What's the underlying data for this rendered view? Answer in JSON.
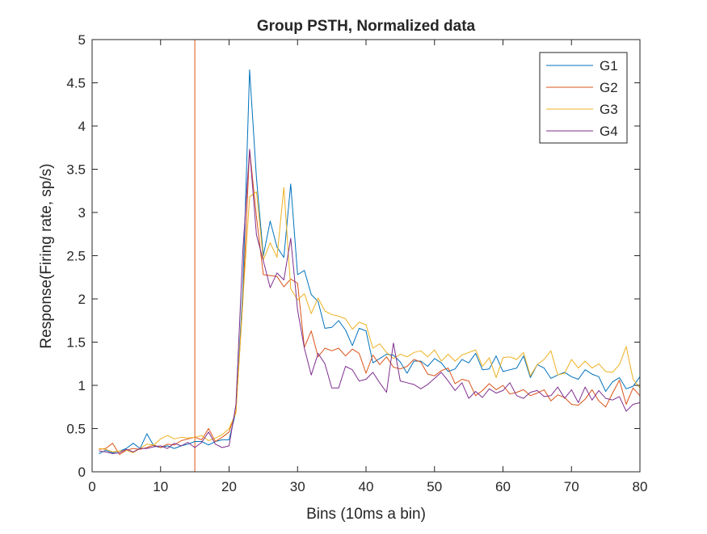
{
  "chart_data": {
    "type": "line",
    "title": "Group PSTH, Normalized data",
    "xlabel": "Bins (10ms a bin)",
    "ylabel": "Response(Firing rate, sp/s)",
    "xlim": [
      0,
      80
    ],
    "ylim": [
      0,
      5
    ],
    "xticks": [
      0,
      10,
      20,
      30,
      40,
      50,
      60,
      70,
      80
    ],
    "yticks": [
      0,
      0.5,
      1,
      1.5,
      2,
      2.5,
      3,
      3.5,
      4,
      4.5,
      5
    ],
    "xtick_labels": [
      "0",
      "10",
      "20",
      "30",
      "40",
      "50",
      "60",
      "70",
      "80"
    ],
    "ytick_labels": [
      "0",
      "0.5",
      "1",
      "1.5",
      "2",
      "2.5",
      "3",
      "3.5",
      "4",
      "4.5",
      "5"
    ],
    "grid": false,
    "legend_position": "top-right",
    "vline": {
      "x": 15,
      "color": "#d95319"
    },
    "x": [
      1,
      2,
      3,
      4,
      5,
      6,
      7,
      8,
      9,
      10,
      11,
      12,
      13,
      14,
      15,
      16,
      17,
      18,
      19,
      20,
      21,
      22,
      23,
      24,
      25,
      26,
      27,
      28,
      29,
      30,
      31,
      32,
      33,
      34,
      35,
      36,
      37,
      38,
      39,
      40,
      41,
      42,
      43,
      44,
      45,
      46,
      47,
      48,
      49,
      50,
      51,
      52,
      53,
      54,
      55,
      56,
      57,
      58,
      59,
      60,
      61,
      62,
      63,
      64,
      65,
      66,
      67,
      68,
      69,
      70,
      71,
      72,
      73,
      74,
      75,
      76,
      77,
      78,
      79,
      80
    ],
    "series": [
      {
        "name": "G1",
        "color": "#0072bd",
        "values": [
          0.21,
          0.25,
          0.22,
          0.24,
          0.27,
          0.33,
          0.27,
          0.44,
          0.3,
          0.28,
          0.3,
          0.27,
          0.3,
          0.32,
          0.35,
          0.35,
          0.31,
          0.35,
          0.37,
          0.37,
          0.7,
          2.1,
          4.65,
          3.4,
          2.5,
          2.9,
          2.6,
          2.48,
          3.33,
          2.28,
          2.33,
          2.05,
          1.97,
          1.66,
          1.67,
          1.75,
          1.64,
          1.46,
          1.66,
          1.63,
          1.26,
          1.31,
          1.36,
          1.35,
          1.27,
          1.14,
          1.28,
          1.28,
          1.22,
          1.31,
          1.26,
          1.16,
          1.19,
          1.3,
          1.26,
          1.37,
          1.18,
          1.19,
          1.34,
          1.16,
          1.18,
          1.2,
          1.34,
          1.09,
          1.24,
          1.2,
          1.08,
          1.12,
          1.15,
          1.1,
          1.07,
          1.18,
          1.13,
          1.1,
          0.93,
          1.04,
          1.09,
          0.96,
          0.99,
          1.1
        ]
      },
      {
        "name": "G2",
        "color": "#d95319",
        "values": [
          0.26,
          0.27,
          0.33,
          0.2,
          0.25,
          0.27,
          0.26,
          0.28,
          0.31,
          0.28,
          0.32,
          0.31,
          0.36,
          0.38,
          0.4,
          0.37,
          0.5,
          0.35,
          0.4,
          0.46,
          0.7,
          1.97,
          3.73,
          2.95,
          2.28,
          2.27,
          2.26,
          2.14,
          2.23,
          2.18,
          1.44,
          1.63,
          1.33,
          1.43,
          1.4,
          1.43,
          1.34,
          1.42,
          1.37,
          1.14,
          1.35,
          1.24,
          1.33,
          1.21,
          1.19,
          1.22,
          1.3,
          1.27,
          1.13,
          1.11,
          1.17,
          1.2,
          1.02,
          1.07,
          1.05,
          0.88,
          0.94,
          1.02,
          0.95,
          1.0,
          0.9,
          0.92,
          0.95,
          0.88,
          0.91,
          0.95,
          0.82,
          0.89,
          0.86,
          0.78,
          0.77,
          0.84,
          0.95,
          0.82,
          0.75,
          0.91,
          1.06,
          0.78,
          0.97,
          0.88
        ]
      },
      {
        "name": "G3",
        "color": "#edb120",
        "values": [
          0.27,
          0.26,
          0.23,
          0.24,
          0.25,
          0.22,
          0.27,
          0.32,
          0.31,
          0.38,
          0.42,
          0.38,
          0.4,
          0.39,
          0.4,
          0.42,
          0.36,
          0.39,
          0.43,
          0.5,
          0.68,
          1.98,
          3.18,
          3.24,
          2.45,
          2.65,
          2.48,
          3.29,
          2.12,
          1.99,
          2.06,
          1.83,
          2.01,
          1.86,
          1.82,
          1.8,
          1.77,
          1.65,
          1.73,
          1.7,
          1.43,
          1.48,
          1.38,
          1.31,
          1.36,
          1.33,
          1.38,
          1.4,
          1.33,
          1.41,
          1.28,
          1.36,
          1.28,
          1.35,
          1.38,
          1.41,
          1.22,
          1.32,
          1.09,
          1.32,
          1.33,
          1.3,
          1.38,
          1.11,
          1.24,
          1.3,
          1.4,
          1.12,
          1.14,
          1.3,
          1.2,
          1.28,
          1.2,
          1.25,
          1.16,
          1.15,
          1.24,
          1.45,
          1.07,
          0.97
        ]
      },
      {
        "name": "G4",
        "color": "#7e2f8e",
        "values": [
          0.24,
          0.23,
          0.21,
          0.22,
          0.26,
          0.23,
          0.27,
          0.27,
          0.29,
          0.3,
          0.27,
          0.33,
          0.3,
          0.34,
          0.28,
          0.34,
          0.46,
          0.32,
          0.28,
          0.3,
          0.78,
          2.55,
          3.73,
          2.74,
          2.44,
          2.13,
          2.3,
          2.22,
          2.7,
          1.87,
          1.43,
          1.12,
          1.37,
          1.25,
          0.97,
          0.97,
          1.22,
          1.18,
          1.05,
          1.07,
          1.15,
          1.03,
          0.92,
          1.49,
          1.05,
          1.03,
          1.01,
          0.96,
          1.01,
          1.08,
          1.15,
          1.05,
          0.94,
          1.03,
          0.85,
          0.93,
          0.86,
          0.96,
          0.91,
          0.94,
          1.03,
          0.88,
          0.85,
          0.92,
          0.94,
          0.87,
          0.88,
          0.98,
          0.85,
          0.95,
          0.8,
          0.98,
          0.83,
          0.94,
          0.85,
          0.83,
          0.87,
          0.7,
          0.78,
          0.8
        ]
      }
    ]
  }
}
